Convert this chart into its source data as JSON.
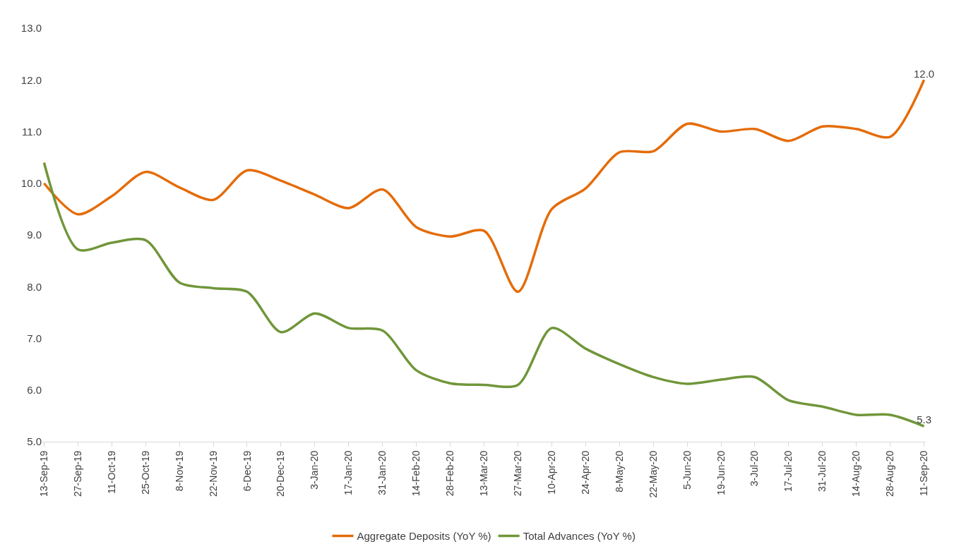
{
  "chart_data": {
    "type": "line",
    "categories": [
      "13-Sep-19",
      "27-Sep-19",
      "11-Oct-19",
      "25-Oct-19",
      "8-Nov-19",
      "22-Nov-19",
      "6-Dec-19",
      "20-Dec-19",
      "3-Jan-20",
      "17-Jan-20",
      "31-Jan-20",
      "14-Feb-20",
      "28-Feb-20",
      "13-Mar-20",
      "27-Mar-20",
      "10-Apr-20",
      "24-Apr-20",
      "8-May-20",
      "22-May-20",
      "5-Jun-20",
      "19-Jun-20",
      "3-Jul-20",
      "17-Jul-20",
      "31-Jul-20",
      "14-Aug-20",
      "28-Aug-20",
      "11-Sep-20"
    ],
    "series": [
      {
        "name": "Aggregate Deposits (YoY %)",
        "color": "#e46c0a",
        "values": [
          10.0,
          9.4,
          9.75,
          10.22,
          9.92,
          9.68,
          10.25,
          10.05,
          9.78,
          9.52,
          9.88,
          9.15,
          8.97,
          9.08,
          7.9,
          9.5,
          9.9,
          10.6,
          10.62,
          11.15,
          11.0,
          11.05,
          10.82,
          11.1,
          11.05,
          10.9,
          12.0
        ],
        "value_labels": [
          null,
          null,
          null,
          null,
          null,
          null,
          null,
          null,
          null,
          null,
          null,
          null,
          null,
          null,
          null,
          null,
          null,
          null,
          null,
          null,
          null,
          null,
          null,
          null,
          null,
          null,
          "12.0"
        ]
      },
      {
        "name": "Total Advances (YoY %)",
        "color": "#70963a",
        "values": [
          10.4,
          8.72,
          8.85,
          8.9,
          8.08,
          7.97,
          7.9,
          7.12,
          7.48,
          7.2,
          7.15,
          6.38,
          6.13,
          6.1,
          6.1,
          7.2,
          6.8,
          6.5,
          6.25,
          6.12,
          6.2,
          6.25,
          5.8,
          5.68,
          5.52,
          5.52,
          5.3
        ],
        "value_labels": [
          null,
          null,
          null,
          null,
          null,
          null,
          null,
          null,
          null,
          null,
          null,
          null,
          null,
          null,
          null,
          null,
          null,
          null,
          null,
          null,
          null,
          null,
          null,
          null,
          null,
          null,
          "5.3"
        ]
      }
    ],
    "ylim": [
      5.0,
      13.0
    ],
    "yticks": [
      {
        "value": 5,
        "label": "5.0"
      },
      {
        "value": 6,
        "label": "6.0"
      },
      {
        "value": 7,
        "label": "7.0"
      },
      {
        "value": 8,
        "label": "8.0"
      },
      {
        "value": 9,
        "label": "9.0"
      },
      {
        "value": 10,
        "label": "10.0"
      },
      {
        "value": 11,
        "label": "11.0"
      },
      {
        "value": 12,
        "label": "12.0"
      },
      {
        "value": 13,
        "label": "13.0"
      }
    ],
    "legend": "bottom",
    "marker": "none",
    "line_style": "solid"
  }
}
